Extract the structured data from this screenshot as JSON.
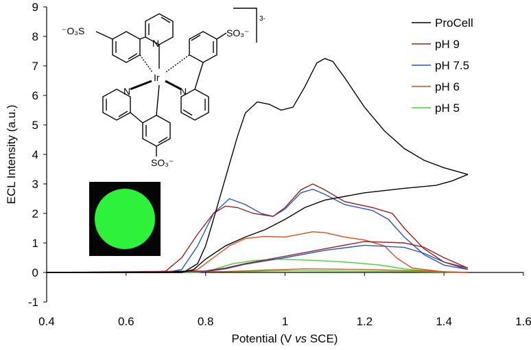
{
  "chart_data": {
    "type": "line",
    "title": "",
    "xlabel": "Potential (V vs SCE)",
    "ylabel": "ECL Intensity (a.u.)",
    "xlim": [
      0.4,
      1.6
    ],
    "ylim": [
      -1,
      9
    ],
    "x_ticks": [
      "0.4",
      "0.6",
      "0.8",
      "1",
      "1.2",
      "1.4",
      "1.6"
    ],
    "y_ticks": [
      "-1",
      "0",
      "1",
      "2",
      "3",
      "4",
      "5",
      "6",
      "7",
      "8",
      "9"
    ],
    "grid": false,
    "legend_position": "top-right",
    "series": [
      {
        "name": "ProCell",
        "color": "#000000",
        "forward": [
          [
            0.4,
            0
          ],
          [
            0.7,
            0
          ],
          [
            0.75,
            0.05
          ],
          [
            0.78,
            0.3
          ],
          [
            0.8,
            0.9
          ],
          [
            0.82,
            1.8
          ],
          [
            0.85,
            3.2
          ],
          [
            0.88,
            4.6
          ],
          [
            0.9,
            5.4
          ],
          [
            0.93,
            5.78
          ],
          [
            0.96,
            5.7
          ],
          [
            0.99,
            5.5
          ],
          [
            1.02,
            5.6
          ],
          [
            1.05,
            6.3
          ],
          [
            1.08,
            7.1
          ],
          [
            1.1,
            7.25
          ],
          [
            1.12,
            7.15
          ],
          [
            1.15,
            6.6
          ],
          [
            1.2,
            5.6
          ],
          [
            1.25,
            4.8
          ],
          [
            1.3,
            4.2
          ],
          [
            1.35,
            3.8
          ],
          [
            1.4,
            3.55
          ],
          [
            1.46,
            3.32
          ]
        ],
        "reverse": [
          [
            1.46,
            3.32
          ],
          [
            1.42,
            3.1
          ],
          [
            1.38,
            2.95
          ],
          [
            1.3,
            2.85
          ],
          [
            1.2,
            2.7
          ],
          [
            1.1,
            2.45
          ],
          [
            1.05,
            2.2
          ],
          [
            1.0,
            1.8
          ],
          [
            0.95,
            1.45
          ],
          [
            0.9,
            1.2
          ],
          [
            0.85,
            0.9
          ],
          [
            0.8,
            0.45
          ],
          [
            0.77,
            0.1
          ],
          [
            0.74,
            0
          ],
          [
            0.4,
            0
          ]
        ]
      },
      {
        "name": "pH 9",
        "color": "#9a1d1d",
        "forward": [
          [
            0.4,
            0
          ],
          [
            0.65,
            0
          ],
          [
            0.7,
            0.05
          ],
          [
            0.74,
            0.5
          ],
          [
            0.78,
            1.3
          ],
          [
            0.82,
            2.0
          ],
          [
            0.85,
            2.25
          ],
          [
            0.88,
            2.2
          ],
          [
            0.92,
            2.0
          ],
          [
            0.97,
            1.9
          ],
          [
            1.0,
            2.2
          ],
          [
            1.04,
            2.8
          ],
          [
            1.07,
            3.0
          ],
          [
            1.1,
            2.8
          ],
          [
            1.15,
            2.4
          ],
          [
            1.22,
            2.2
          ],
          [
            1.27,
            2.0
          ],
          [
            1.3,
            1.5
          ],
          [
            1.35,
            0.8
          ],
          [
            1.4,
            0.35
          ],
          [
            1.46,
            0.15
          ]
        ],
        "reverse": [
          [
            1.46,
            0.15
          ],
          [
            1.4,
            0.5
          ],
          [
            1.35,
            0.85
          ],
          [
            1.3,
            1.0
          ],
          [
            1.2,
            1.05
          ],
          [
            1.1,
            0.8
          ],
          [
            1.0,
            0.55
          ],
          [
            0.9,
            0.3
          ],
          [
            0.85,
            0.15
          ],
          [
            0.8,
            0.05
          ],
          [
            0.4,
            0
          ]
        ]
      },
      {
        "name": "pH 7.5",
        "color": "#2554c7",
        "forward": [
          [
            0.4,
            0
          ],
          [
            0.7,
            0
          ],
          [
            0.74,
            0.1
          ],
          [
            0.78,
            0.9
          ],
          [
            0.82,
            2.0
          ],
          [
            0.86,
            2.5
          ],
          [
            0.9,
            2.3
          ],
          [
            0.94,
            2.0
          ],
          [
            0.97,
            1.9
          ],
          [
            1.0,
            2.15
          ],
          [
            1.04,
            2.7
          ],
          [
            1.07,
            2.82
          ],
          [
            1.1,
            2.65
          ],
          [
            1.15,
            2.3
          ],
          [
            1.22,
            2.1
          ],
          [
            1.26,
            1.8
          ],
          [
            1.3,
            1.2
          ],
          [
            1.35,
            0.6
          ],
          [
            1.4,
            0.25
          ],
          [
            1.46,
            0.1
          ]
        ],
        "reverse": [
          [
            1.46,
            0.1
          ],
          [
            1.4,
            0.35
          ],
          [
            1.35,
            0.65
          ],
          [
            1.3,
            0.85
          ],
          [
            1.2,
            0.92
          ],
          [
            1.1,
            0.75
          ],
          [
            1.0,
            0.5
          ],
          [
            0.9,
            0.28
          ],
          [
            0.85,
            0.12
          ],
          [
            0.8,
            0.03
          ],
          [
            0.4,
            0
          ]
        ]
      },
      {
        "name": "pH 6",
        "color": "#e04a1c",
        "forward": [
          [
            0.4,
            0
          ],
          [
            0.74,
            0
          ],
          [
            0.78,
            0.1
          ],
          [
            0.82,
            0.5
          ],
          [
            0.86,
            0.9
          ],
          [
            0.9,
            1.15
          ],
          [
            0.95,
            1.22
          ],
          [
            1.0,
            1.2
          ],
          [
            1.04,
            1.3
          ],
          [
            1.07,
            1.38
          ],
          [
            1.1,
            1.35
          ],
          [
            1.15,
            1.2
          ],
          [
            1.2,
            1.1
          ],
          [
            1.25,
            0.9
          ],
          [
            1.28,
            0.5
          ],
          [
            1.32,
            0.15
          ],
          [
            1.4,
            0.02
          ],
          [
            1.46,
            0
          ]
        ],
        "reverse": [
          [
            1.46,
            0
          ],
          [
            1.35,
            0.05
          ],
          [
            1.2,
            0.1
          ],
          [
            1.05,
            0.12
          ],
          [
            0.95,
            0.08
          ],
          [
            0.85,
            0.03
          ],
          [
            0.4,
            0
          ]
        ]
      },
      {
        "name": "pH 5",
        "color": "#39d62c",
        "forward": [
          [
            0.4,
            0
          ],
          [
            0.78,
            0
          ],
          [
            0.82,
            0.1
          ],
          [
            0.87,
            0.3
          ],
          [
            0.92,
            0.4
          ],
          [
            0.98,
            0.45
          ],
          [
            1.05,
            0.42
          ],
          [
            1.12,
            0.38
          ],
          [
            1.18,
            0.32
          ],
          [
            1.24,
            0.25
          ],
          [
            1.3,
            0.12
          ],
          [
            1.38,
            0.03
          ],
          [
            1.46,
            0
          ]
        ],
        "reverse": [
          [
            1.46,
            0
          ],
          [
            1.3,
            0.03
          ],
          [
            1.15,
            0.05
          ],
          [
            1.0,
            0.06
          ],
          [
            0.9,
            0.03
          ],
          [
            0.4,
            0
          ]
        ]
      }
    ]
  },
  "inset": {
    "structure_charge": "3-",
    "sulfonate_label": "SO3-",
    "metal_label": "Ir",
    "nitrogen_label": "N"
  }
}
